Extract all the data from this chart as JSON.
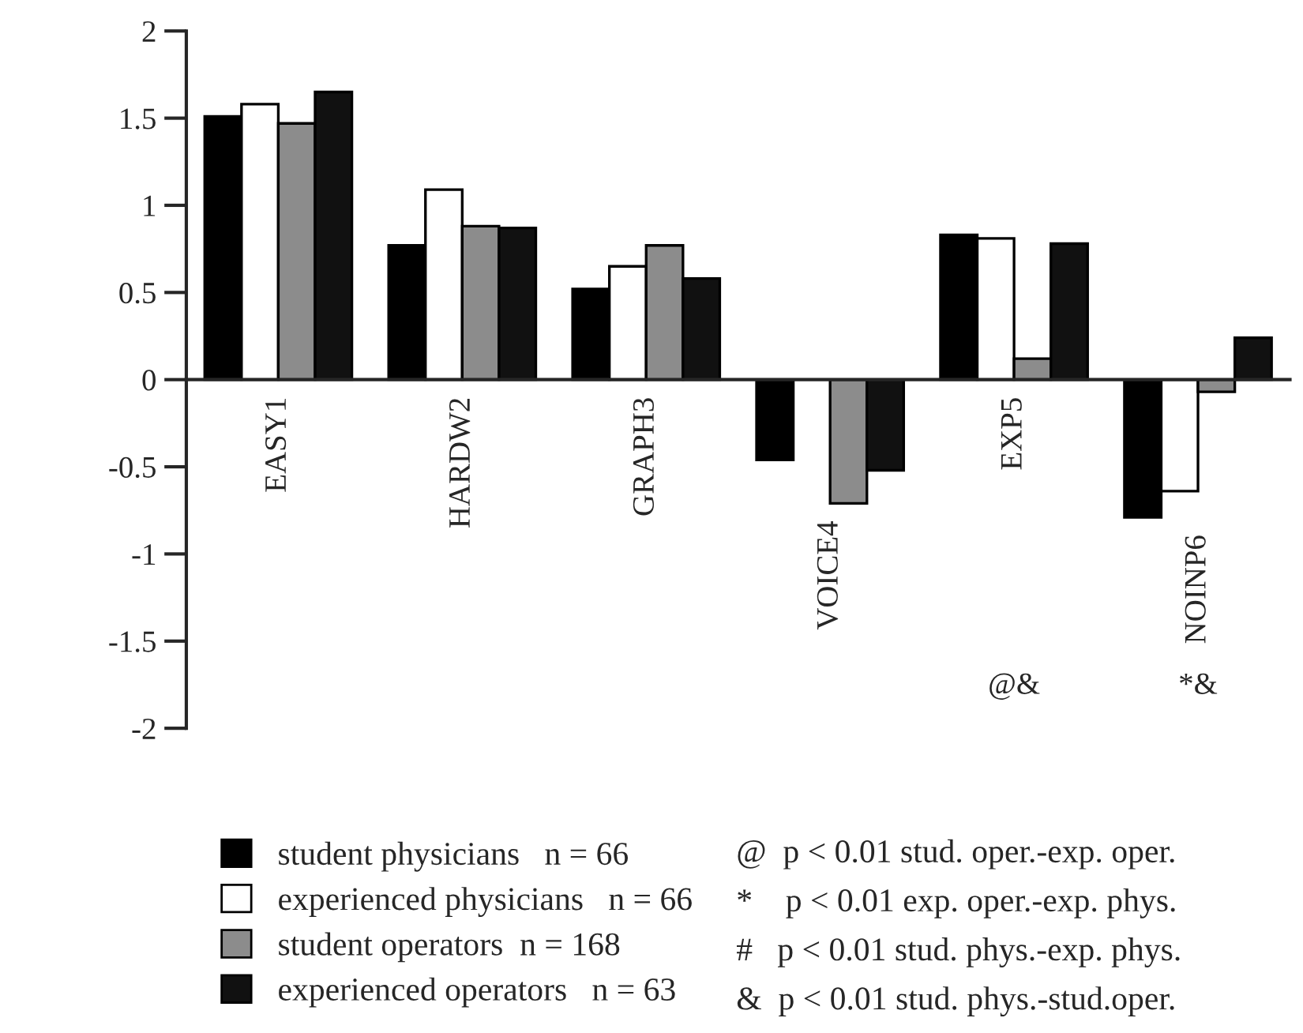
{
  "chart_data": {
    "type": "bar",
    "categories": [
      "EASY1",
      "HARDW2",
      "GRAPH3",
      "VOICE4",
      "EXP5",
      "NOINP6"
    ],
    "series": [
      {
        "name": "student physicians   n = 66",
        "color": "#000000",
        "values": [
          1.51,
          0.77,
          0.52,
          -0.46,
          0.83,
          -0.79
        ]
      },
      {
        "name": "experienced physicians   n = 66",
        "color": "#ffffff",
        "values": [
          1.58,
          1.09,
          0.65,
          null,
          0.81,
          -0.64
        ]
      },
      {
        "name": "student operators  n = 168",
        "color": "#8c8c8c",
        "values": [
          1.47,
          0.88,
          0.77,
          -0.71,
          0.12,
          -0.07
        ]
      },
      {
        "name": "experienced operators   n = 63",
        "color": "#111111",
        "values": [
          1.65,
          0.87,
          0.58,
          -0.52,
          0.78,
          0.24
        ]
      }
    ],
    "ylim": [
      -2,
      2
    ],
    "yticks": [
      -2,
      -1.5,
      -1,
      -0.5,
      0,
      0.5,
      1,
      1.5,
      2
    ],
    "grid": false,
    "legend": "bottom left",
    "annotations": [
      "@&",
      "*&",
      "@  p < 0.01 stud. oper.-exp. oper.",
      "*    p < 0.01 exp. oper.-exp. phys.",
      "#   p < 0.01 stud. phys.-exp. phys.",
      "&  p < 0.01 stud. phys.-stud.oper."
    ]
  }
}
